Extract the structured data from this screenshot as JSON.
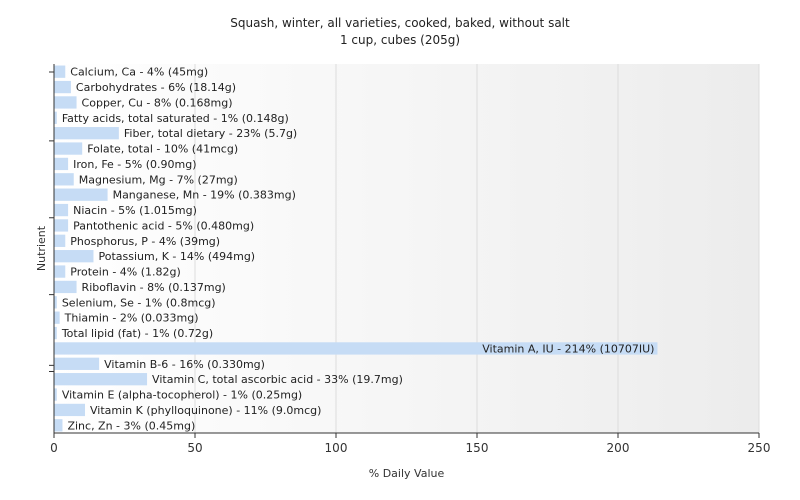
{
  "chart_data": {
    "type": "bar",
    "orientation": "horizontal",
    "title": "Squash, winter, all varieties, cooked, baked, without salt",
    "subtitle": "1 cup, cubes (205g)",
    "xlabel": "% Daily Value",
    "ylabel": "Nutrient",
    "xlim": [
      0,
      250
    ],
    "xticks": [
      0,
      50,
      100,
      150,
      200,
      250
    ],
    "grid": true,
    "bar_color": "#c6dcf5",
    "series": [
      {
        "categories": [
          "Calcium, Ca - 4% (45mg)",
          "Carbohydrates - 6% (18.14g)",
          "Copper, Cu - 8% (0.168mg)",
          "Fatty acids, total saturated - 1% (0.148g)",
          "Fiber, total dietary - 23% (5.7g)",
          "Folate, total - 10% (41mcg)",
          "Iron, Fe - 5% (0.90mg)",
          "Magnesium, Mg - 7% (27mg)",
          "Manganese, Mn - 19% (0.383mg)",
          "Niacin - 5% (1.015mg)",
          "Pantothenic acid - 5% (0.480mg)",
          "Phosphorus, P - 4% (39mg)",
          "Potassium, K - 14% (494mg)",
          "Protein - 4% (1.82g)",
          "Riboflavin - 8% (0.137mg)",
          "Selenium, Se - 1% (0.8mcg)",
          "Thiamin - 2% (0.033mg)",
          "Total lipid (fat) - 1% (0.72g)",
          "Vitamin A, IU - 214% (10707IU)",
          "Vitamin B-6 - 16% (0.330mg)",
          "Vitamin C, total ascorbic acid - 33% (19.7mg)",
          "Vitamin E (alpha-tocopherol) - 1% (0.25mg)",
          "Vitamin K (phylloquinone) - 11% (9.0mcg)",
          "Zinc, Zn - 3% (0.45mg)"
        ],
        "values": [
          4,
          6,
          8,
          1,
          23,
          10,
          5,
          7,
          19,
          5,
          5,
          4,
          14,
          4,
          8,
          1,
          2,
          1,
          214,
          16,
          33,
          1,
          11,
          3
        ]
      }
    ]
  }
}
